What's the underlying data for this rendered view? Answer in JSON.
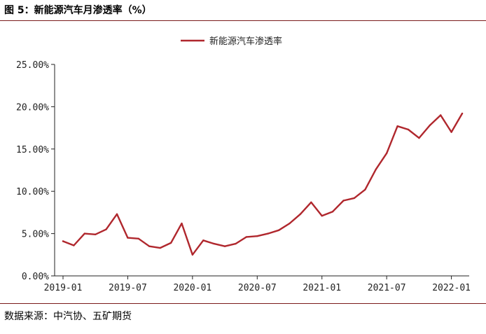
{
  "figure": {
    "title": "图 5：新能源汽车月渗透率（%）",
    "source": "数据来源：中汽协、五矿期货"
  },
  "colors": {
    "series": "#B0272D",
    "axis": "#222222"
  },
  "chart_data": {
    "type": "line",
    "title": "",
    "xlabel": "",
    "ylabel": "",
    "ylim": [
      0,
      25
    ],
    "grid": false,
    "legend_position": "top-center",
    "y_ticks": [
      "0.00%",
      "5.00%",
      "10.00%",
      "15.00%",
      "20.00%",
      "25.00%"
    ],
    "x_ticks": [
      "2019-01",
      "2019-07",
      "2020-01",
      "2020-07",
      "2021-01",
      "2021-07",
      "2022-01"
    ],
    "x": [
      "2019-01",
      "2019-02",
      "2019-03",
      "2019-04",
      "2019-05",
      "2019-06",
      "2019-07",
      "2019-08",
      "2019-09",
      "2019-10",
      "2019-11",
      "2019-12",
      "2020-01",
      "2020-02",
      "2020-03",
      "2020-04",
      "2020-05",
      "2020-06",
      "2020-07",
      "2020-08",
      "2020-09",
      "2020-10",
      "2020-11",
      "2020-12",
      "2021-01",
      "2021-02",
      "2021-03",
      "2021-04",
      "2021-05",
      "2021-06",
      "2021-07",
      "2021-08",
      "2021-09",
      "2021-10",
      "2021-11",
      "2021-12",
      "2022-01",
      "2022-02"
    ],
    "series": [
      {
        "name": "新能源汽车渗透率",
        "values": [
          4.1,
          3.6,
          5.0,
          4.9,
          5.5,
          7.3,
          4.5,
          4.4,
          3.5,
          3.3,
          3.9,
          6.2,
          2.5,
          4.2,
          3.8,
          3.5,
          3.8,
          4.6,
          4.7,
          5.0,
          5.4,
          6.2,
          7.3,
          8.7,
          7.1,
          7.6,
          8.9,
          9.2,
          10.2,
          12.6,
          14.5,
          17.7,
          17.3,
          16.3,
          17.8,
          19.0,
          17.0,
          19.2
        ]
      }
    ]
  }
}
